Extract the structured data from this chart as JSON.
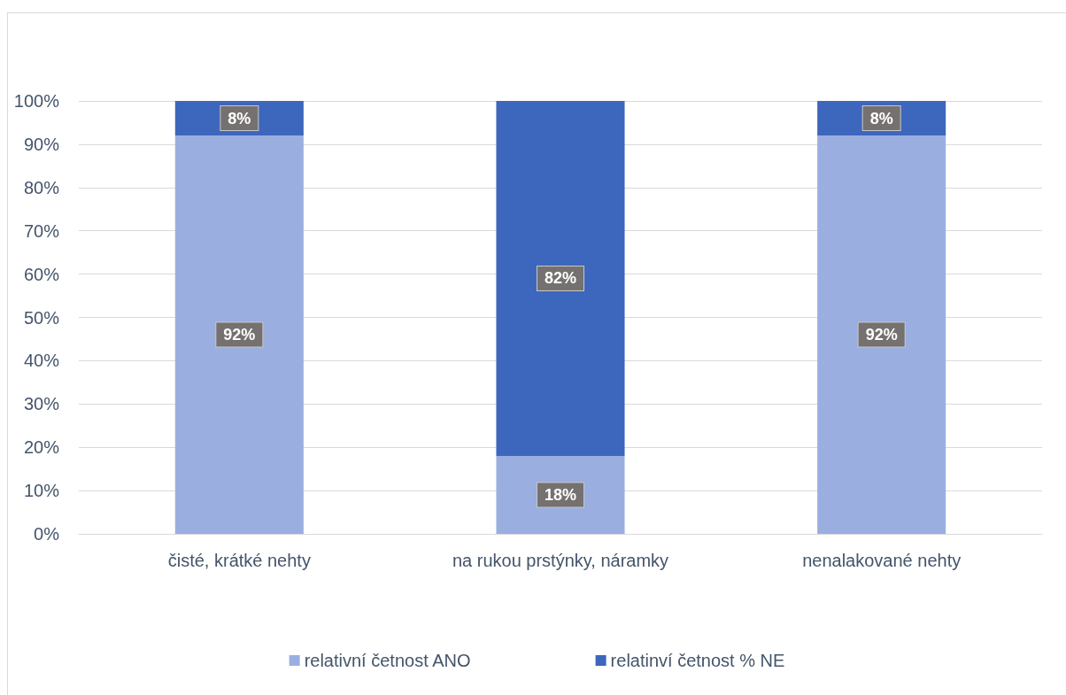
{
  "chart_data": {
    "type": "bar",
    "categories": [
      "čisté, krátké nehty",
      "na rukou prstýnky, náramky",
      "nenalakované nehty"
    ],
    "series": [
      {
        "name": "relativní četnost ANO",
        "color": "#9aaee0",
        "values": [
          92,
          18,
          92
        ],
        "value_labels": [
          "92%",
          "18%",
          "92%"
        ]
      },
      {
        "name": "relatinví četnost % NE",
        "color": "#3d66bd",
        "values": [
          8,
          82,
          8
        ],
        "value_labels": [
          "8%",
          "82%",
          "8%"
        ]
      }
    ],
    "stacked": true,
    "ylim": [
      0,
      100
    ],
    "yticks": [
      {
        "value": 0,
        "label": "0%"
      },
      {
        "value": 10,
        "label": "10%"
      },
      {
        "value": 20,
        "label": "20%"
      },
      {
        "value": 30,
        "label": "30%"
      },
      {
        "value": 40,
        "label": "40%"
      },
      {
        "value": 50,
        "label": "50%"
      },
      {
        "value": 60,
        "label": "60%"
      },
      {
        "value": 70,
        "label": "70%"
      },
      {
        "value": 80,
        "label": "80%"
      },
      {
        "value": 90,
        "label": "90%"
      },
      {
        "value": 100,
        "label": "100%"
      }
    ],
    "grid": "y",
    "legend": "bottom"
  }
}
